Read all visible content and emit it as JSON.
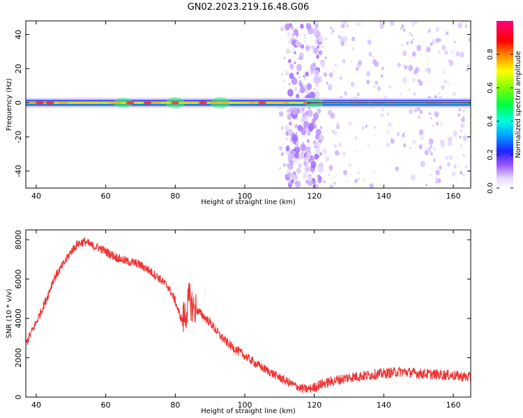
{
  "title": "GN02.2023.219.16.48.G06",
  "chart_data": [
    {
      "type": "heatmap",
      "xlabel": "Height of straight line (km)",
      "ylabel": "Frequency (Hz)",
      "xlim": [
        37,
        165
      ],
      "ylim": [
        -50,
        48
      ],
      "xticks": [
        40,
        60,
        80,
        100,
        120,
        140,
        160
      ],
      "yticks": [
        -40,
        -20,
        0,
        20,
        40
      ],
      "ridge_frequency_hz": 0,
      "ridge_peaks": [
        {
          "height_km": 41,
          "amplitude": 0.9
        },
        {
          "height_km": 44,
          "amplitude": 0.9
        },
        {
          "height_km": 67,
          "amplitude": 0.85
        },
        {
          "height_km": 72,
          "amplitude": 0.9
        },
        {
          "height_km": 80,
          "amplitude": 0.8
        },
        {
          "height_km": 88,
          "amplitude": 0.9
        },
        {
          "height_km": 105,
          "amplitude": 0.8
        },
        {
          "height_km": 118,
          "amplitude": 0.6
        }
      ],
      "noise_region_km": [
        110,
        165
      ],
      "colorbar": {
        "label": "Normalized spectral amplitude",
        "range": [
          0.0,
          1.0
        ],
        "ticks": [
          "0.0",
          "0.2",
          "0.4",
          "0.6",
          "0.8"
        ],
        "colormap": "white-purple-blue-cyan-green-yellow-red-magenta"
      }
    },
    {
      "type": "line",
      "xlabel": "Height of straight line (km)",
      "ylabel": "SNR (10 * v/v)",
      "xlim": [
        37,
        165
      ],
      "ylim": [
        0,
        8500
      ],
      "xticks": [
        40,
        60,
        80,
        100,
        120,
        140,
        160
      ],
      "yticks": [
        0,
        2000,
        4000,
        6000,
        8000
      ],
      "color": "#ee3333",
      "series": [
        {
          "x": [
            37,
            40,
            43,
            45,
            48,
            50,
            52,
            54,
            56,
            58,
            60,
            63,
            66,
            69,
            72,
            75,
            78,
            80,
            81,
            82,
            83,
            84,
            85,
            87,
            90,
            93,
            96,
            100,
            104,
            108,
            112,
            116,
            118,
            120,
            122,
            125,
            130,
            135,
            140,
            145,
            150,
            155,
            160,
            165
          ],
          "values": [
            2700,
            3800,
            5000,
            6000,
            6800,
            7400,
            7800,
            7900,
            7700,
            7600,
            7400,
            7100,
            6900,
            6800,
            6500,
            6100,
            5600,
            4900,
            4300,
            3900,
            4200,
            5000,
            4600,
            4300,
            3800,
            3100,
            2600,
            2100,
            1600,
            1200,
            800,
            450,
            400,
            500,
            650,
            800,
            1000,
            1100,
            1200,
            1300,
            1200,
            1150,
            1100,
            1000
          ]
        }
      ]
    }
  ]
}
